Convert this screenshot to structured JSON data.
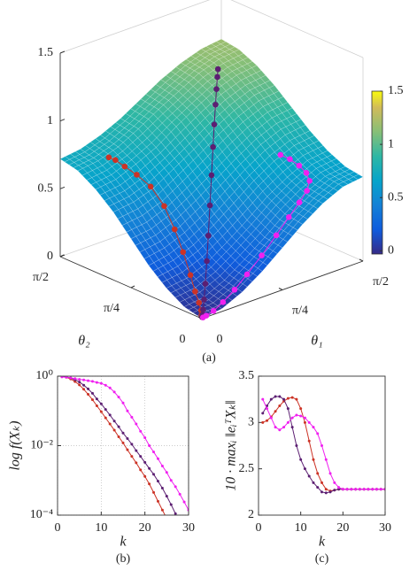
{
  "chart_data": [
    {
      "type": "surface",
      "caption": "(a)",
      "xlabel": "θ₁",
      "ylabel": "θ₂",
      "xlim": [
        0,
        1.5708
      ],
      "ylim": [
        0,
        1.5708
      ],
      "zlim": [
        0,
        1.5
      ],
      "xticks": [
        0,
        {
          "value": 0.7854,
          "label": "π/4"
        },
        {
          "value": 1.5708,
          "label": "π/2"
        }
      ],
      "yticks": [
        0,
        {
          "value": 0.7854,
          "label": "π/4"
        },
        {
          "value": 1.5708,
          "label": "π/2"
        }
      ],
      "zticks": [
        0,
        0.5,
        1,
        1.5
      ],
      "grid_x": [
        0,
        0.19635,
        0.3927,
        0.58905,
        0.7854,
        0.98175,
        1.1781,
        1.37445,
        1.5708
      ],
      "grid_y": [
        0,
        0.19635,
        0.3927,
        0.58905,
        0.7854,
        0.98175,
        1.1781,
        1.37445,
        1.5708
      ],
      "z": [
        [
          0,
          0.02,
          0.09,
          0.19,
          0.31,
          0.43,
          0.53,
          0.6,
          0.62
        ],
        [
          0.03,
          0.05,
          0.12,
          0.22,
          0.33,
          0.45,
          0.55,
          0.62,
          0.64
        ],
        [
          0.11,
          0.13,
          0.19,
          0.29,
          0.4,
          0.52,
          0.61,
          0.68,
          0.7
        ],
        [
          0.22,
          0.25,
          0.31,
          0.4,
          0.51,
          0.62,
          0.71,
          0.77,
          0.79
        ],
        [
          0.36,
          0.38,
          0.44,
          0.53,
          0.63,
          0.73,
          0.82,
          0.88,
          0.9
        ],
        [
          0.5,
          0.52,
          0.57,
          0.66,
          0.75,
          0.85,
          0.93,
          0.99,
          1.01
        ],
        [
          0.61,
          0.63,
          0.69,
          0.76,
          0.86,
          0.95,
          1.03,
          1.08,
          1.1
        ],
        [
          0.69,
          0.71,
          0.76,
          0.84,
          0.93,
          1.01,
          1.09,
          1.14,
          1.16
        ],
        [
          0.72,
          0.74,
          0.79,
          0.86,
          0.95,
          1.04,
          1.11,
          1.16,
          1.18
        ]
      ],
      "clim": [
        -0.03,
        1.5
      ],
      "colorbar_ticks": [
        0,
        0.5,
        1,
        1.5
      ],
      "series": [
        {
          "color": "#cc3326",
          "x": [
            0.02,
            0.04,
            0.08,
            0.13,
            0.18,
            0.24,
            0.3,
            0.35,
            0.38,
            0.38,
            0.35,
            0.32,
            0.3,
            0.28
          ],
          "y": [
            0.02,
            0.05,
            0.1,
            0.18,
            0.28,
            0.4,
            0.55,
            0.7,
            0.85,
            1.0,
            1.12,
            1.22,
            1.3,
            1.35
          ],
          "z": [
            0,
            0,
            0.01,
            0.03,
            0.07,
            0.14,
            0.25,
            0.36,
            0.48,
            0.58,
            0.64,
            0.68,
            0.71,
            0.72
          ]
        },
        {
          "color": "#5c1f72",
          "x": [
            0.02,
            0.05,
            0.1,
            0.18,
            0.28,
            0.4,
            0.52,
            0.65,
            0.78,
            0.9,
            1.0,
            1.1,
            1.18,
            1.25,
            1.3
          ],
          "y": [
            0.02,
            0.05,
            0.1,
            0.18,
            0.28,
            0.4,
            0.52,
            0.65,
            0.78,
            0.9,
            1.0,
            1.1,
            1.18,
            1.25,
            1.3
          ],
          "z": [
            0,
            0,
            0.01,
            0.04,
            0.1,
            0.2,
            0.32,
            0.47,
            0.62,
            0.76,
            0.87,
            0.96,
            1.03,
            1.08,
            1.11
          ]
        },
        {
          "color": "#f020f0",
          "x": [
            0.02,
            0.06,
            0.14,
            0.25,
            0.38,
            0.52,
            0.68,
            0.84,
            0.98,
            1.1,
            1.2,
            1.27,
            1.3,
            1.3,
            1.28,
            1.25
          ],
          "y": [
            0.01,
            0.02,
            0.03,
            0.05,
            0.07,
            0.09,
            0.11,
            0.13,
            0.15,
            0.17,
            0.2,
            0.25,
            0.32,
            0.4,
            0.48,
            0.55
          ],
          "z": [
            0,
            0,
            0.01,
            0.04,
            0.09,
            0.16,
            0.25,
            0.35,
            0.44,
            0.51,
            0.56,
            0.6,
            0.63,
            0.66,
            0.69,
            0.71
          ]
        }
      ]
    },
    {
      "type": "line",
      "caption": "(b)",
      "xlabel": "k",
      "ylabel": "log f(Xₖ)",
      "log_y": true,
      "grid": true,
      "x": [
        1,
        2,
        3,
        4,
        5,
        6,
        7,
        8,
        9,
        10,
        11,
        12,
        13,
        14,
        15,
        16,
        17,
        18,
        19,
        20,
        21,
        22,
        23,
        24,
        25,
        26,
        27,
        28,
        29,
        30
      ],
      "xlim": [
        0,
        30
      ],
      "xticks": [
        0,
        10,
        20,
        30
      ],
      "ylim": [
        0.0001,
        1
      ],
      "yticks": [
        {
          "value": 0.0001,
          "label": "10⁻⁴"
        },
        {
          "value": 0.01,
          "label": "10⁻²"
        },
        {
          "value": 1,
          "label": "10⁰"
        }
      ],
      "series": [
        {
          "color": "#cc3326",
          "values": [
            1,
            0.93,
            0.83,
            0.7,
            0.56,
            0.42,
            0.3,
            0.21,
            0.14,
            0.095,
            0.063,
            0.042,
            0.028,
            0.018,
            0.012,
            0.0076,
            0.0049,
            0.0032,
            0.002,
            0.0013,
            0.00079,
            0.00045,
            0.00025,
            0.00014,
            8e-05,
            null,
            null,
            null,
            null,
            null
          ]
        },
        {
          "color": "#5c1f72",
          "values": [
            1,
            0.95,
            0.89,
            0.79,
            0.68,
            0.55,
            0.43,
            0.32,
            0.22,
            0.16,
            0.11,
            0.076,
            0.051,
            0.035,
            0.023,
            0.016,
            0.011,
            0.0072,
            0.0049,
            0.0033,
            0.0022,
            0.0015,
            0.00095,
            0.0006,
            0.00035,
            0.0002,
            0.00011,
            6.3e-05,
            null,
            null
          ]
        },
        {
          "color": "#f020f0",
          "values": [
            0.95,
            0.93,
            0.89,
            0.85,
            0.81,
            0.78,
            0.74,
            0.71,
            0.66,
            0.62,
            0.55,
            0.46,
            0.35,
            0.25,
            0.17,
            0.1,
            0.066,
            0.042,
            0.026,
            0.017,
            0.01,
            0.0066,
            0.0042,
            0.0026,
            0.0017,
            0.001,
            0.00066,
            0.0004,
            0.00024,
            0.00014
          ]
        }
      ]
    },
    {
      "type": "line",
      "caption": "(c)",
      "xlabel": "k",
      "ylabel": "10 · maxᵢ ‖eᵢᵀXₖ‖",
      "log_y": false,
      "grid": false,
      "x": [
        1,
        2,
        3,
        4,
        5,
        6,
        7,
        8,
        9,
        10,
        11,
        12,
        13,
        14,
        15,
        16,
        17,
        18,
        19,
        20,
        21,
        22,
        23,
        24,
        25,
        26,
        27,
        28,
        29,
        30
      ],
      "xlim": [
        0,
        30
      ],
      "xticks": [
        0,
        10,
        20,
        30
      ],
      "ylim": [
        2,
        3.5
      ],
      "yticks": [
        2,
        2.5,
        3,
        3.5
      ],
      "series": [
        {
          "color": "#cc3326",
          "values": [
            3.0,
            3.02,
            3.06,
            3.12,
            3.18,
            3.23,
            3.26,
            3.27,
            3.25,
            3.15,
            3.0,
            2.8,
            2.6,
            2.45,
            2.35,
            2.28,
            2.26,
            2.27,
            2.28,
            2.28,
            2.28,
            2.28,
            2.28,
            2.28,
            2.28,
            2.28,
            2.28,
            2.28,
            2.28,
            2.28
          ]
        },
        {
          "color": "#5c1f72",
          "values": [
            3.1,
            3.18,
            3.25,
            3.28,
            3.28,
            3.25,
            3.15,
            2.95,
            2.75,
            2.6,
            2.5,
            2.42,
            2.35,
            2.3,
            2.25,
            2.24,
            2.25,
            2.27,
            2.28,
            2.28,
            2.28,
            2.28,
            2.28,
            2.28,
            2.28,
            2.28,
            2.28,
            2.28,
            2.28,
            2.28
          ]
        },
        {
          "color": "#f020f0",
          "values": [
            3.25,
            3.15,
            3.05,
            2.95,
            2.92,
            2.95,
            3.0,
            3.05,
            3.08,
            3.07,
            3.05,
            3.0,
            2.95,
            2.88,
            2.75,
            2.6,
            2.45,
            2.35,
            2.3,
            2.28,
            2.28,
            2.28,
            2.28,
            2.28,
            2.28,
            2.28,
            2.28,
            2.28,
            2.28,
            2.28
          ]
        }
      ]
    }
  ]
}
